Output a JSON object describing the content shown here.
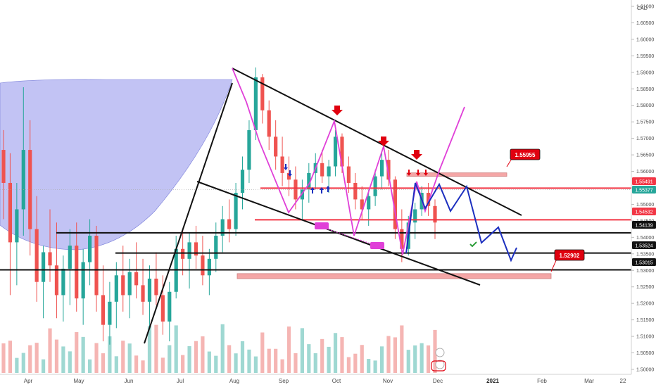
{
  "chart_data": {
    "type": "candlestick",
    "currency": "CAD",
    "y_axis": {
      "range": [
        1.4985,
        1.6115
      ],
      "ticks": [
        1.61,
        1.605,
        1.6,
        1.595,
        1.59,
        1.585,
        1.58,
        1.575,
        1.57,
        1.565,
        1.56,
        1.555,
        1.55,
        1.545,
        1.54,
        1.535,
        1.53,
        1.525,
        1.52,
        1.515,
        1.51,
        1.505,
        1.5
      ],
      "tick_labels": [
        "1.61000",
        "1.60500",
        "1.60000",
        "1.59500",
        "1.59000",
        "1.58500",
        "1.58000",
        "1.57500",
        "1.57000",
        "1.56500",
        "1.56000",
        "1.55500",
        "1.55000",
        "1.54500",
        "1.54000",
        "1.53500",
        "1.53000",
        "1.52500",
        "1.52000",
        "1.51500",
        "1.51000",
        "1.50500",
        "1.50000"
      ]
    },
    "x_axis": {
      "labels": [
        "Apr",
        "May",
        "Jun",
        "Jul",
        "Aug",
        "Sep",
        "Oct",
        "Nov",
        "Dec",
        "2021",
        "Feb",
        "Mar",
        "22"
      ],
      "bold_labels": [
        "2021"
      ]
    },
    "price_tags": [
      {
        "value": "1.55491",
        "color": "#f23645",
        "text_color": "#ffffff"
      },
      {
        "value": "1.55377",
        "color": "#26a69a",
        "text_color": "#ffffff"
      },
      {
        "value": "1.54532",
        "color": "#f23645",
        "text_color": "#ffffff"
      },
      {
        "value": "1.54139",
        "color": "#111111",
        "text_color": "#ffffff"
      },
      {
        "value": "1.53524",
        "color": "#111111",
        "text_color": "#ffffff"
      },
      {
        "value": "1.53015",
        "color": "#111111",
        "text_color": "#ffffff"
      }
    ],
    "callouts": [
      {
        "value": "1.55955",
        "color": "#e0000f",
        "text_color": "#ffffff"
      },
      {
        "value": "1.52902",
        "color": "#e0000f",
        "text_color": "#ffffff"
      }
    ],
    "levels": {
      "red": [
        1.55491,
        1.54532
      ],
      "black": [
        1.54139,
        1.53524,
        1.53015
      ]
    },
    "zones": [
      {
        "from": 1.55955,
        "to": 1.5585,
        "color": "#f4a6a6"
      },
      {
        "from": 1.52902,
        "to": 1.5275,
        "color": "#f4a6a6"
      }
    ],
    "colors": {
      "bull": "#26a69a",
      "bear": "#ef5350",
      "volume_bull": "#9fd8d2",
      "volume_bear": "#f5b5b3",
      "cup_fill": "#b7b9f2",
      "pattern_line": "#e040d8",
      "projection_line": "#1c2fbf",
      "arrow_down": "#e0000f",
      "arrow_up": "#1c2fbf",
      "check": "#2e9e3a"
    },
    "candles": [
      [
        1.5665,
        1.5725,
        1.5455,
        1.5565
      ],
      [
        1.5565,
        1.5655,
        1.5225,
        1.5385
      ],
      [
        1.5385,
        1.5565,
        1.5255,
        1.5485
      ],
      [
        1.5485,
        1.5855,
        1.5405,
        1.5665
      ],
      [
        1.5665,
        1.5755,
        1.5345,
        1.5425
      ],
      [
        1.5425,
        1.5525,
        1.5205,
        1.5265
      ],
      [
        1.5265,
        1.5375,
        1.5155,
        1.5355
      ],
      [
        1.5355,
        1.5485,
        1.5265,
        1.5315
      ],
      [
        1.5315,
        1.5445,
        1.5155,
        1.5225
      ],
      [
        1.5225,
        1.5345,
        1.5145,
        1.5305
      ],
      [
        1.5305,
        1.5425,
        1.5195,
        1.5375
      ],
      [
        1.5375,
        1.5445,
        1.5175,
        1.5215
      ],
      [
        1.5215,
        1.5365,
        1.5135,
        1.5325
      ],
      [
        1.5325,
        1.5455,
        1.5255,
        1.5405
      ],
      [
        1.5405,
        1.5435,
        1.5175,
        1.5225
      ],
      [
        1.5225,
        1.5315,
        1.5085,
        1.5135
      ],
      [
        1.5135,
        1.5265,
        1.5075,
        1.5205
      ],
      [
        1.5205,
        1.5325,
        1.5125,
        1.5285
      ],
      [
        1.5285,
        1.5375,
        1.5175,
        1.5225
      ],
      [
        1.5225,
        1.5335,
        1.5155,
        1.5295
      ],
      [
        1.5295,
        1.5385,
        1.5215,
        1.5255
      ],
      [
        1.5255,
        1.5335,
        1.5165,
        1.5205
      ],
      [
        1.5205,
        1.5315,
        1.5125,
        1.5275
      ],
      [
        1.5275,
        1.5355,
        1.5195,
        1.5225
      ],
      [
        1.5225,
        1.5285,
        1.5105,
        1.5145
      ],
      [
        1.5145,
        1.5265,
        1.5085,
        1.5235
      ],
      [
        1.5235,
        1.5405,
        1.5215,
        1.5365
      ],
      [
        1.5365,
        1.5425,
        1.5285,
        1.5335
      ],
      [
        1.5335,
        1.5415,
        1.5245,
        1.5385
      ],
      [
        1.5385,
        1.5435,
        1.5305,
        1.5345
      ],
      [
        1.5345,
        1.5405,
        1.5255,
        1.5285
      ],
      [
        1.5285,
        1.5365,
        1.5225,
        1.5335
      ],
      [
        1.5335,
        1.5445,
        1.5295,
        1.5405
      ],
      [
        1.5405,
        1.5495,
        1.5355,
        1.5455
      ],
      [
        1.5455,
        1.5515,
        1.5385,
        1.5425
      ],
      [
        1.5425,
        1.5565,
        1.5405,
        1.5535
      ],
      [
        1.5535,
        1.5645,
        1.5485,
        1.5605
      ],
      [
        1.5605,
        1.5755,
        1.5565,
        1.5725
      ],
      [
        1.5725,
        1.5915,
        1.5695,
        1.5885
      ],
      [
        1.5885,
        1.5895,
        1.5745,
        1.5785
      ],
      [
        1.5785,
        1.5815,
        1.5665,
        1.5705
      ],
      [
        1.5705,
        1.5755,
        1.5605,
        1.5645
      ],
      [
        1.5645,
        1.5705,
        1.5555,
        1.5595
      ],
      [
        1.5595,
        1.5645,
        1.5525,
        1.5575
      ],
      [
        1.5575,
        1.5615,
        1.5485,
        1.5515
      ],
      [
        1.5515,
        1.5575,
        1.5455,
        1.5545
      ],
      [
        1.5545,
        1.5625,
        1.5505,
        1.5595
      ],
      [
        1.5595,
        1.5655,
        1.5545,
        1.5625
      ],
      [
        1.5625,
        1.5665,
        1.5565,
        1.5585
      ],
      [
        1.5585,
        1.5635,
        1.5535,
        1.5615
      ],
      [
        1.5615,
        1.5725,
        1.5585,
        1.5705
      ],
      [
        1.5705,
        1.5715,
        1.5595,
        1.5615
      ],
      [
        1.5615,
        1.5645,
        1.5535,
        1.5565
      ],
      [
        1.5565,
        1.5595,
        1.5485,
        1.5515
      ],
      [
        1.5515,
        1.5555,
        1.5455,
        1.5485
      ],
      [
        1.5485,
        1.5545,
        1.5435,
        1.5525
      ],
      [
        1.5525,
        1.5605,
        1.5495,
        1.5585
      ],
      [
        1.5585,
        1.5655,
        1.5545,
        1.5635
      ],
      [
        1.5635,
        1.5665,
        1.5555,
        1.5575
      ],
      [
        1.5575,
        1.5585,
        1.5395,
        1.5425
      ],
      [
        1.5425,
        1.5485,
        1.5325,
        1.5365
      ],
      [
        1.5365,
        1.5465,
        1.5345,
        1.5445
      ],
      [
        1.5445,
        1.5505,
        1.5395,
        1.5485
      ],
      [
        1.5485,
        1.5555,
        1.5465,
        1.5535
      ],
      [
        1.5535,
        1.5565,
        1.5465,
        1.5495
      ],
      [
        1.5495,
        1.5515,
        1.5395,
        1.5445
      ]
    ]
  }
}
